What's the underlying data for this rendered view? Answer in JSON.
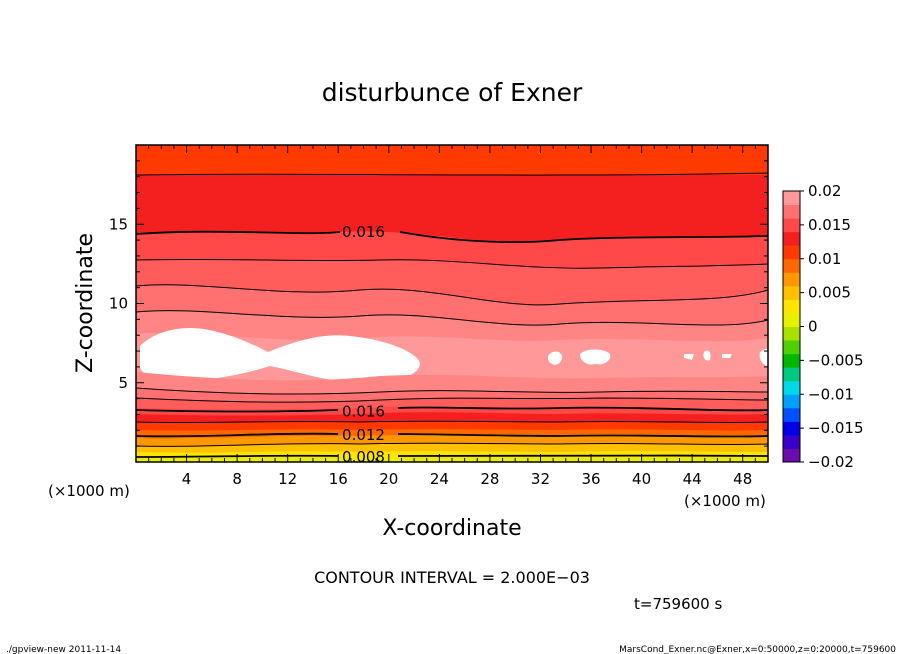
{
  "chart_data": {
    "type": "heatmap",
    "title": "disturbunce of Exner",
    "xlabel": "X-coordinate",
    "ylabel": "Z-coordinate",
    "x_unit": "(×1000 m)",
    "z_unit": "(×1000 m)",
    "xlim": [
      0,
      50
    ],
    "ylim": [
      0,
      20
    ],
    "x_ticks": [
      4,
      8,
      12,
      16,
      20,
      24,
      28,
      32,
      36,
      40,
      44,
      48
    ],
    "y_ticks": [
      5,
      10,
      15
    ],
    "colorbar": {
      "min": -0.02,
      "max": 0.02,
      "tick_values": [
        0.02,
        0.015,
        0.01,
        0.005,
        0,
        -0.005,
        -0.01,
        -0.015,
        -0.02
      ],
      "tick_labels": [
        "0.02",
        "0.015",
        "0.01",
        "0.005",
        "0",
        "−0.005",
        "−0.01",
        "−0.015",
        "−0.02"
      ],
      "colors": [
        "#6a0dad",
        "#3b00c8",
        "#0000e6",
        "#0050ff",
        "#00a0ff",
        "#00d8e8",
        "#00c880",
        "#00b800",
        "#50d000",
        "#a8e000",
        "#e8f000",
        "#ffe400",
        "#ffc000",
        "#ff9800",
        "#ff6800",
        "#ff3a00",
        "#f42020",
        "#ff4848",
        "#ff7070",
        "#ff9898"
      ]
    },
    "contour_labels": [
      {
        "text": "0.016",
        "x": 18,
        "z": 14.5
      },
      {
        "text": "0.016",
        "x": 18,
        "z": 3.2
      },
      {
        "text": "0.012",
        "x": 18,
        "z": 1.7
      },
      {
        "text": "0.008",
        "x": 18,
        "z": 0.3
      }
    ],
    "contour_interval_text": "CONTOUR INTERVAL = 2.000E−03",
    "time_text": "t=759600 s"
  },
  "footer": {
    "left": "./gpview-new  2011-11-14",
    "right": "MarsCond_Exner.nc@Exner,x=0:50000,z=0:20000,t=759600"
  }
}
